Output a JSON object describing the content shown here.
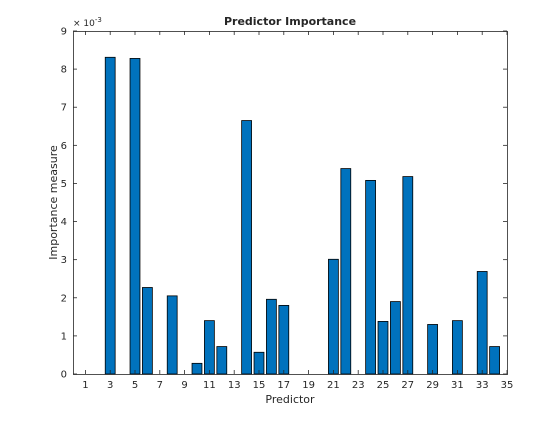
{
  "chart_data": {
    "type": "bar",
    "title": "Predictor Importance",
    "xlabel": "Predictor",
    "ylabel": "Importance measure",
    "y_exponent_label": "× 10",
    "y_exponent": "-3",
    "xlim": [
      0,
      35
    ],
    "ylim": [
      0,
      9
    ],
    "x_ticks": [
      "1",
      "3",
      "5",
      "7",
      "9",
      "11",
      "13",
      "15",
      "17",
      "19",
      "21",
      "23",
      "25",
      "27",
      "29",
      "31",
      "33",
      "35"
    ],
    "y_ticks": [
      "0",
      "1",
      "2",
      "3",
      "4",
      "5",
      "6",
      "7",
      "8",
      "9"
    ],
    "categories": [
      1,
      2,
      3,
      4,
      5,
      6,
      7,
      8,
      9,
      10,
      11,
      12,
      13,
      14,
      15,
      16,
      17,
      18,
      19,
      20,
      21,
      22,
      23,
      24,
      25,
      26,
      27,
      28,
      29,
      30,
      31,
      32,
      33,
      34
    ],
    "values": [
      0,
      0,
      8.31,
      0,
      8.28,
      2.27,
      0,
      2.05,
      0,
      0.28,
      1.4,
      0.72,
      0,
      6.65,
      0.57,
      1.96,
      1.8,
      0,
      0,
      0,
      3.01,
      5.39,
      0,
      5.08,
      1.38,
      1.9,
      5.18,
      0,
      1.3,
      0,
      1.4,
      0,
      2.69,
      0.72
    ],
    "bar_color": "#0072BD",
    "edge_color": "#000000",
    "axis_color": "#262626",
    "grid": false
  }
}
